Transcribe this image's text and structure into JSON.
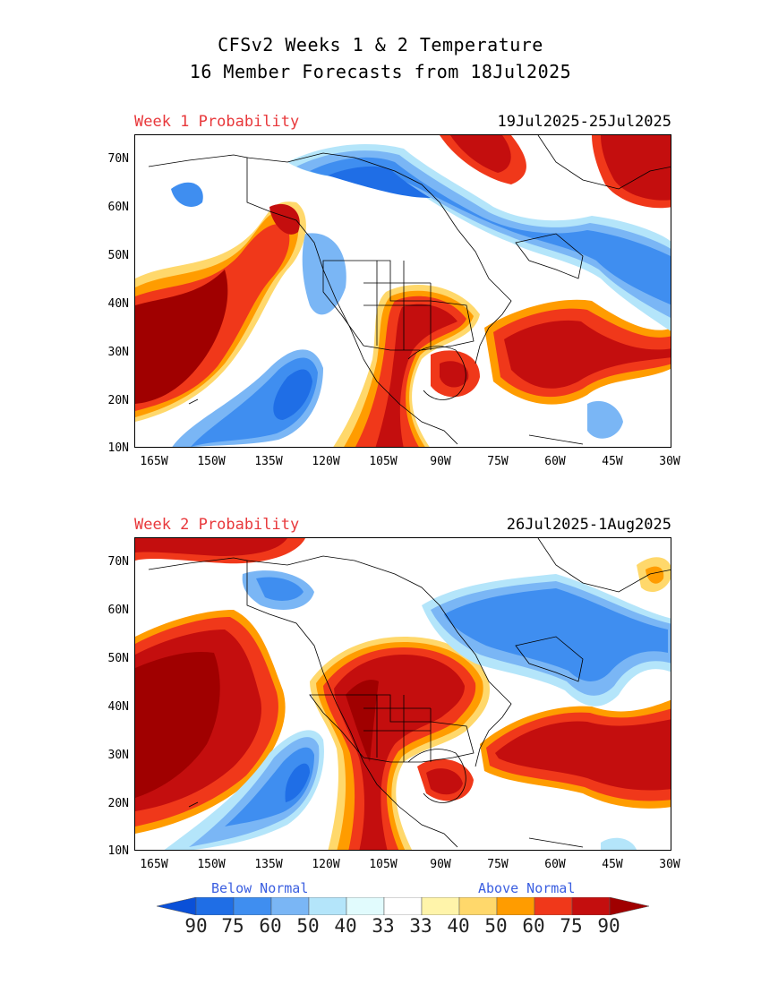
{
  "title": {
    "line1": "CFSv2 Weeks 1 & 2 Temperature",
    "line2": "16 Member Forecasts from 18Jul2025"
  },
  "panels": [
    {
      "label": "Week 1 Probability",
      "dates": "19Jul2025-25Jul2025",
      "lat_ticks": [
        "70N",
        "60N",
        "50N",
        "40N",
        "30N",
        "20N",
        "10N"
      ],
      "lon_ticks": [
        "165W",
        "150W",
        "135W",
        "120W",
        "105W",
        "90W",
        "75W",
        "60W",
        "45W",
        "30W"
      ]
    },
    {
      "label": "Week 2 Probability",
      "dates": "26Jul2025-1Aug2025",
      "lat_ticks": [
        "70N",
        "60N",
        "50N",
        "40N",
        "30N",
        "20N",
        "10N"
      ],
      "lon_ticks": [
        "165W",
        "150W",
        "135W",
        "120W",
        "105W",
        "90W",
        "75W",
        "60W",
        "45W",
        "30W"
      ]
    }
  ],
  "legend": {
    "below_label": "Below Normal",
    "above_label": "Above Normal",
    "values": [
      "90",
      "75",
      "60",
      "50",
      "40",
      "33",
      "33",
      "40",
      "50",
      "60",
      "75",
      "90"
    ],
    "colors": [
      "#0a50d8",
      "#1f6ee6",
      "#3f8ef0",
      "#7ab6f5",
      "#b4e5fa",
      "#e1fbfd",
      "#ffffff",
      "#fff4aa",
      "#ffd86b",
      "#ff9c00",
      "#f0381a",
      "#c40e0e",
      "#a00000"
    ]
  }
}
